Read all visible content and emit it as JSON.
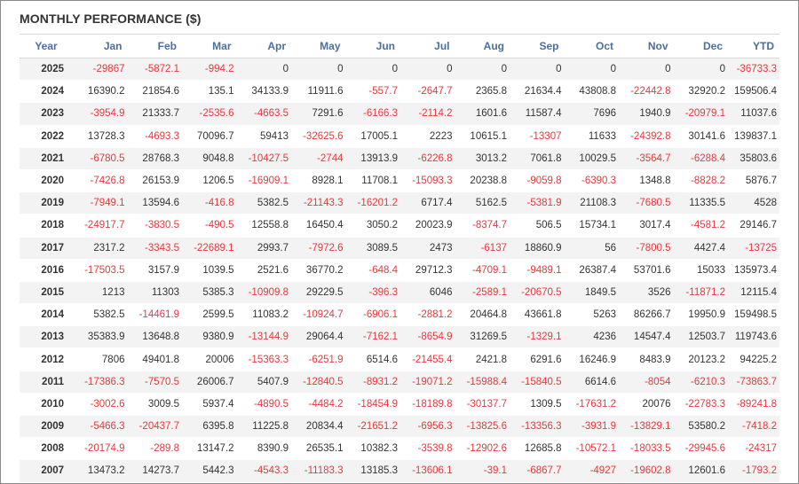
{
  "title": "MONTHLY PERFORMANCE ($)",
  "headers": [
    "Year",
    "Jan",
    "Feb",
    "Mar",
    "Apr",
    "May",
    "Jun",
    "Jul",
    "Aug",
    "Sep",
    "Oct",
    "Nov",
    "Dec",
    "YTD"
  ],
  "negative_color": "#e8383d",
  "header_color": "#4a6f9e",
  "rows": [
    [
      "2025",
      "-29867",
      "-5872.1",
      "-994.2",
      "0",
      "0",
      "0",
      "0",
      "0",
      "0",
      "0",
      "0",
      "0",
      "-36733.3"
    ],
    [
      "2024",
      "16390.2",
      "21854.6",
      "135.1",
      "34133.9",
      "11911.6",
      "-557.7",
      "-2647.7",
      "2365.8",
      "21634.4",
      "43808.8",
      "-22442.8",
      "32920.2",
      "159506.4"
    ],
    [
      "2023",
      "-3954.9",
      "21333.7",
      "-2535.6",
      "-4663.5",
      "7291.6",
      "-6166.3",
      "-2114.2",
      "1601.6",
      "11587.4",
      "7696",
      "1940.9",
      "-20979.1",
      "11037.6"
    ],
    [
      "2022",
      "13728.3",
      "-4693.3",
      "70096.7",
      "59413",
      "-32625.6",
      "17005.1",
      "2223",
      "10615.1",
      "-13307",
      "11633",
      "-24392.8",
      "30141.6",
      "139837.1"
    ],
    [
      "2021",
      "-6780.5",
      "28768.3",
      "9048.8",
      "-10427.5",
      "-2744",
      "13913.9",
      "-6226.8",
      "3013.2",
      "7061.8",
      "10029.5",
      "-3564.7",
      "-6288.4",
      "35803.6"
    ],
    [
      "2020",
      "-7426.8",
      "26153.9",
      "1206.5",
      "-16909.1",
      "8928.1",
      "11708.1",
      "-15093.3",
      "20238.8",
      "-9059.8",
      "-6390.3",
      "1348.8",
      "-8828.2",
      "5876.7"
    ],
    [
      "2019",
      "-7949.1",
      "13594.6",
      "-416.8",
      "5382.5",
      "-21143.3",
      "-16201.2",
      "6717.4",
      "5162.5",
      "-5381.9",
      "21108.3",
      "-7680.5",
      "11335.5",
      "4528"
    ],
    [
      "2018",
      "-24917.7",
      "-3830.5",
      "-490.5",
      "12558.8",
      "16450.4",
      "3050.2",
      "20023.9",
      "-8374.7",
      "506.5",
      "15734.1",
      "3017.4",
      "-4581.2",
      "29146.7"
    ],
    [
      "2017",
      "2317.2",
      "-3343.5",
      "-22689.1",
      "2993.7",
      "-7972.6",
      "3089.5",
      "2473",
      "-6137",
      "18860.9",
      "56",
      "-7800.5",
      "4427.4",
      "-13725"
    ],
    [
      "2016",
      "-17503.5",
      "3157.9",
      "1039.5",
      "2521.6",
      "36770.2",
      "-648.4",
      "29712.3",
      "-4709.1",
      "-9489.1",
      "26387.4",
      "53701.6",
      "15033",
      "135973.4"
    ],
    [
      "2015",
      "1213",
      "11303",
      "5385.3",
      "-10909.8",
      "29229.5",
      "-396.3",
      "6046",
      "-2589.1",
      "-20670.5",
      "1849.5",
      "3526",
      "-11871.2",
      "12115.4"
    ],
    [
      "2014",
      "5382.5",
      "-14461.9",
      "2599.5",
      "11083.2",
      "-10924.7",
      "-6906.1",
      "-2881.2",
      "20464.8",
      "43661.8",
      "5263",
      "86266.7",
      "19950.9",
      "159498.5"
    ],
    [
      "2013",
      "35383.9",
      "13648.8",
      "9380.9",
      "-13144.9",
      "29064.4",
      "-7162.1",
      "-8654.9",
      "31269.5",
      "-1329.1",
      "4236",
      "14547.4",
      "12503.7",
      "119743.6"
    ],
    [
      "2012",
      "7806",
      "49401.8",
      "20006",
      "-15363.3",
      "-6251.9",
      "6514.6",
      "-21455.4",
      "2421.8",
      "6291.6",
      "16246.9",
      "8483.9",
      "20123.2",
      "94225.2"
    ],
    [
      "2011",
      "-17386.3",
      "-7570.5",
      "26006.7",
      "5407.9",
      "-12840.5",
      "-8931.2",
      "-19071.2",
      "-15988.4",
      "-15840.5",
      "6614.6",
      "-8054",
      "-6210.3",
      "-73863.7"
    ],
    [
      "2010",
      "-3002.6",
      "3009.5",
      "5937.4",
      "-4890.5",
      "-4484.2",
      "-18454.9",
      "-18189.8",
      "-30137.7",
      "1309.5",
      "-17631.2",
      "20076",
      "-22783.3",
      "-89241.8"
    ],
    [
      "2009",
      "-5466.3",
      "-20437.7",
      "6395.8",
      "11225.8",
      "20834.4",
      "-21651.2",
      "-6956.3",
      "-13825.6",
      "-13356.3",
      "-3931.9",
      "-13829.1",
      "53580.2",
      "-7418.2"
    ],
    [
      "2008",
      "-20174.9",
      "-289.8",
      "13147.2",
      "8390.9",
      "26535.1",
      "10382.3",
      "-3539.8",
      "-12902.6",
      "12685.8",
      "-10572.1",
      "-18033.5",
      "-29945.6",
      "-24317"
    ],
    [
      "2007",
      "13473.2",
      "14273.7",
      "5442.3",
      "-4543.3",
      "-11183.3",
      "13185.3",
      "-13606.1",
      "-39.1",
      "-6867.7",
      "-4927",
      "-19602.8",
      "12601.6",
      "-1793.2"
    ]
  ]
}
